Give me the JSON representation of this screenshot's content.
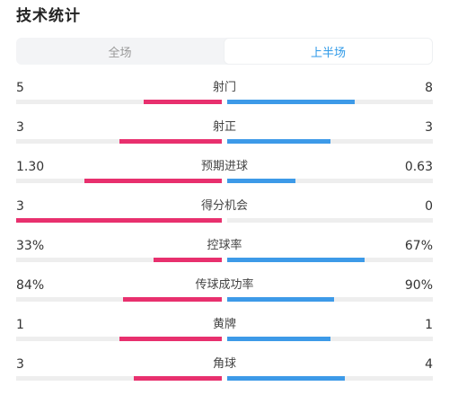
{
  "title": "技术统计",
  "tabs": [
    {
      "label": "全场",
      "active": false
    },
    {
      "label": "上半场",
      "active": true
    }
  ],
  "colors": {
    "home": "#e8306e",
    "away": "#3d9ae8",
    "active_tab": "#2f9ae8"
  },
  "stats": [
    {
      "label": "射门",
      "home": "5",
      "away": "8",
      "home_pct": 38,
      "away_pct": 62
    },
    {
      "label": "射正",
      "home": "3",
      "away": "3",
      "home_pct": 50,
      "away_pct": 50
    },
    {
      "label": "预期进球",
      "home": "1.30",
      "away": "0.63",
      "home_pct": 67,
      "away_pct": 33
    },
    {
      "label": "得分机会",
      "home": "3",
      "away": "0",
      "home_pct": 100,
      "away_pct": 0
    },
    {
      "label": "控球率",
      "home": "33%",
      "away": "67%",
      "home_pct": 33,
      "away_pct": 67
    },
    {
      "label": "传球成功率",
      "home": "84%",
      "away": "90%",
      "home_pct": 48,
      "away_pct": 52
    },
    {
      "label": "黄牌",
      "home": "1",
      "away": "1",
      "home_pct": 50,
      "away_pct": 50
    },
    {
      "label": "角球",
      "home": "3",
      "away": "4",
      "home_pct": 43,
      "away_pct": 57
    }
  ]
}
